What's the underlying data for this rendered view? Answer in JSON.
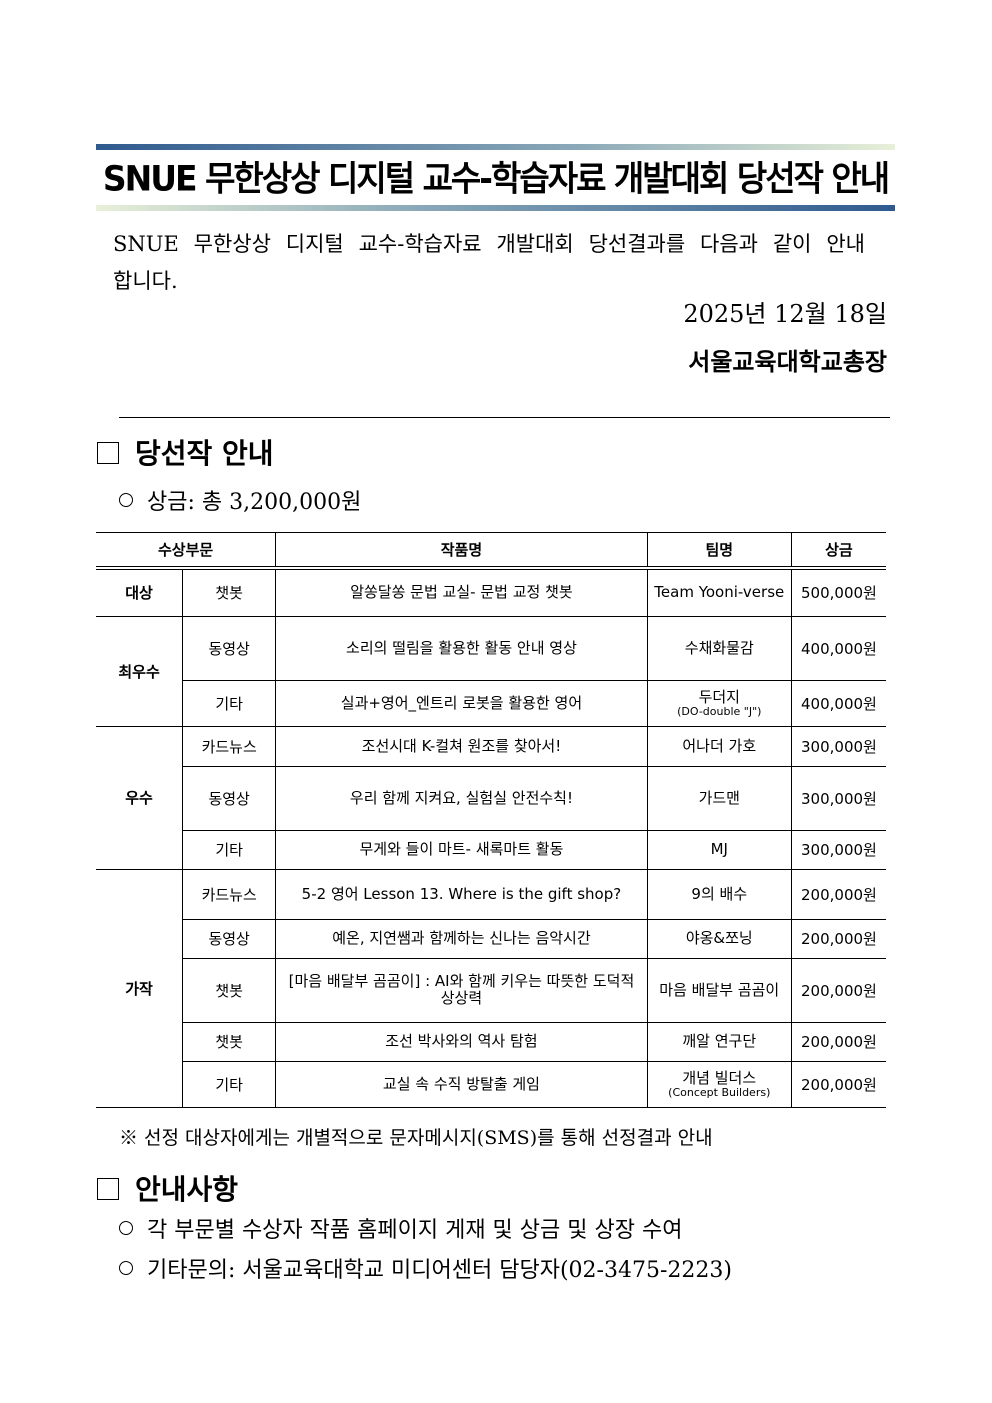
{
  "title": "SNUE 무한상상 디지털 교수-학습자료 개발대회 당선작 안내",
  "intro": "SNUE 무한상상 디지털 교수-학습자료 개발대회 당선결과를 다음과 같이 안내합니다.",
  "date": "2025년 12월 18일",
  "signer": "서울교육대학교총장",
  "section1": {
    "heading": "당선작 안내",
    "prize_total": "상금: 총 3,200,000원"
  },
  "table": {
    "headers": [
      "수상부문",
      "작품명",
      "팀명",
      "상금"
    ],
    "rows": [
      {
        "group": "대상",
        "category": "챗봇",
        "work": "알쏭달쏭 문법 교실- 문법 교정 챗봇",
        "team": "Team Yooni-verse",
        "team_sub": "",
        "prize": "500,000원"
      },
      {
        "group": "최우수",
        "category": "동영상",
        "work": "소리의 떨림을 활용한 활동 안내 영상",
        "team": "수채화물감",
        "team_sub": "",
        "prize": "400,000원"
      },
      {
        "group": "",
        "category": "기타",
        "work": "실과+영어_엔트리 로봇을 활용한 영어",
        "team": "두더지",
        "team_sub": "(DO-double \"J\")",
        "prize": "400,000원"
      },
      {
        "group": "우수",
        "category": "카드뉴스",
        "work": "조선시대 K-컬쳐 원조를 찾아서!",
        "team": "어나더 가호",
        "team_sub": "",
        "prize": "300,000원"
      },
      {
        "group": "",
        "category": "동영상",
        "work": "우리 함께 지켜요, 실험실 안전수칙!",
        "team": "가드맨",
        "team_sub": "",
        "prize": "300,000원"
      },
      {
        "group": "",
        "category": "기타",
        "work": "무게와 들이 마트- 새록마트 활동",
        "team": "MJ",
        "team_sub": "",
        "prize": "300,000원"
      },
      {
        "group": "가작",
        "category": "카드뉴스",
        "work": "5-2 영어 Lesson 13. Where is the gift shop?",
        "team": "9의 배수",
        "team_sub": "",
        "prize": "200,000원"
      },
      {
        "group": "",
        "category": "동영상",
        "work": "예온, 지연쌤과 함께하는 신나는 음악시간",
        "team": "야옹&쪼닝",
        "team_sub": "",
        "prize": "200,000원"
      },
      {
        "group": "",
        "category": "챗봇",
        "work": "[마음 배달부 곰곰이] : AI와 함께 키우는 따뜻한 도덕적 상상력",
        "team": "마음 배달부 곰곰이",
        "team_sub": "",
        "prize": "200,000원"
      },
      {
        "group": "",
        "category": "챗봇",
        "work": "조선 박사와의 역사 탐험",
        "team": "깨알 연구단",
        "team_sub": "",
        "prize": "200,000원"
      },
      {
        "group": "",
        "category": "기타",
        "work": "교실 속 수직 방탈출 게임",
        "team": "개념 빌더스",
        "team_sub": "(Concept Builders)",
        "prize": "200,000원"
      }
    ]
  },
  "note": "※ 선정 대상자에게는 개별적으로 문자메시지(SMS)를 통해 선정결과 안내",
  "section2": {
    "heading": "안내사항",
    "items": [
      "각 부문별 수상자 작품 홈페이지 게재 및 상금 및 상장 수여",
      "기타문의: 서울교육대학교 미디어센터 담당자(02-3475-2223)"
    ]
  }
}
